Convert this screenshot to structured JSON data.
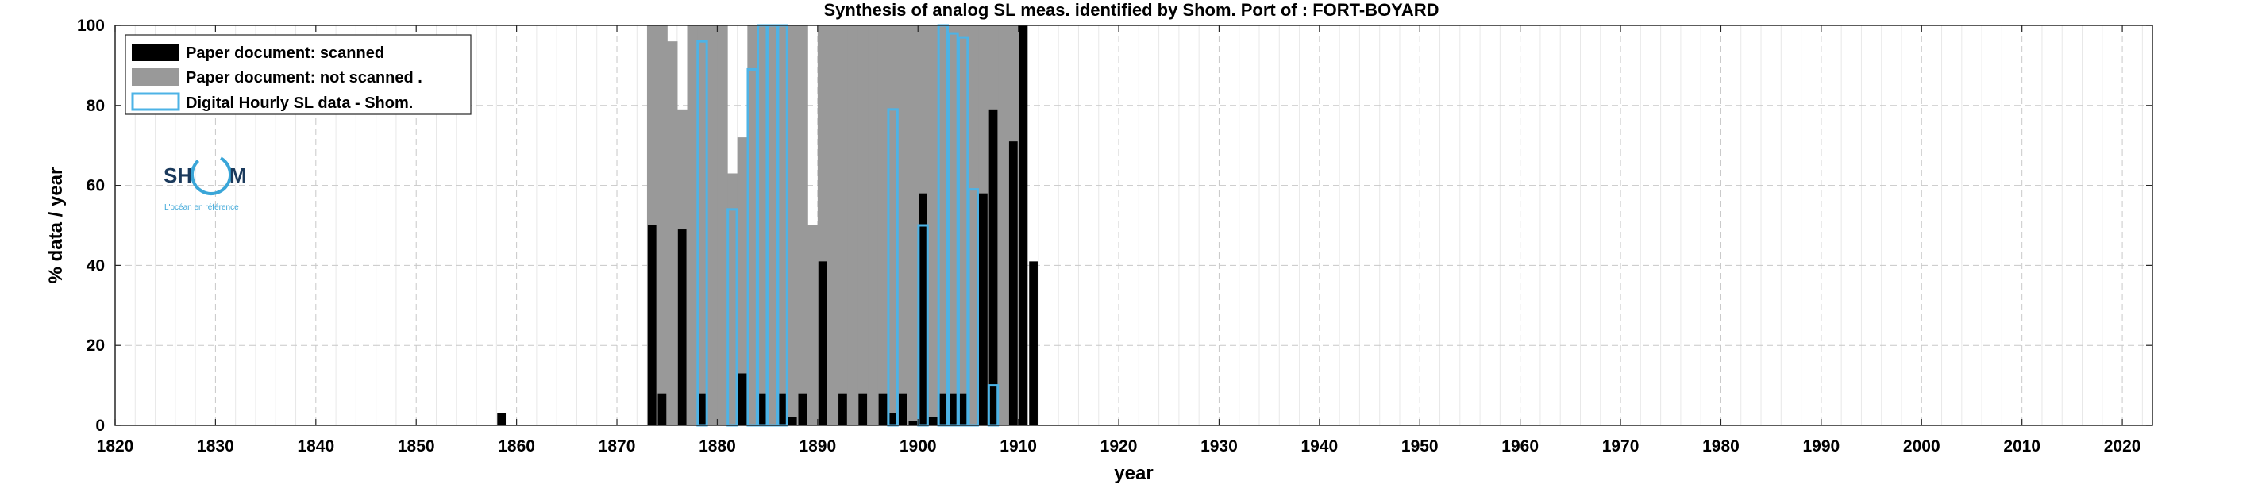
{
  "chart_data": {
    "type": "bar",
    "title": "Synthesis of analog SL meas. identified by Shom. Port of : FORT-BOYARD",
    "xlabel": "year",
    "ylabel": "% data / year",
    "xlim": [
      1820,
      2023
    ],
    "ylim": [
      0,
      100
    ],
    "xticks": [
      1820,
      1830,
      1840,
      1850,
      1860,
      1870,
      1880,
      1890,
      1900,
      1910,
      1920,
      1930,
      1940,
      1950,
      1960,
      1970,
      1980,
      1990,
      2000,
      2010,
      2020
    ],
    "yticks": [
      0,
      20,
      40,
      60,
      80,
      100
    ],
    "grid": true,
    "legend_position": "top-left",
    "legend": [
      {
        "label": "Paper document: scanned",
        "color": "#000000",
        "style": "filled"
      },
      {
        "label": "Paper document: not scanned   .",
        "color": "#999999",
        "style": "filled"
      },
      {
        "label": "Digital Hourly SL data - Shom.",
        "color": "#4db3e6",
        "style": "outline"
      }
    ],
    "series": [
      {
        "name": "Paper document: not scanned   .",
        "color": "#999999",
        "points": [
          [
            1873,
            100
          ],
          [
            1874,
            100
          ],
          [
            1875,
            96
          ],
          [
            1876,
            79
          ],
          [
            1877,
            100
          ],
          [
            1878,
            100
          ],
          [
            1879,
            100
          ],
          [
            1880,
            100
          ],
          [
            1881,
            63
          ],
          [
            1882,
            72
          ],
          [
            1883,
            100
          ],
          [
            1884,
            100
          ],
          [
            1885,
            100
          ],
          [
            1886,
            100
          ],
          [
            1887,
            100
          ],
          [
            1888,
            100
          ],
          [
            1889,
            50
          ],
          [
            1890,
            100
          ],
          [
            1891,
            100
          ],
          [
            1892,
            100
          ],
          [
            1893,
            100
          ],
          [
            1894,
            100
          ],
          [
            1895,
            100
          ],
          [
            1896,
            100
          ],
          [
            1897,
            100
          ],
          [
            1898,
            100
          ],
          [
            1899,
            100
          ],
          [
            1900,
            100
          ],
          [
            1901,
            100
          ],
          [
            1902,
            100
          ],
          [
            1903,
            100
          ],
          [
            1904,
            100
          ],
          [
            1905,
            100
          ],
          [
            1906,
            100
          ],
          [
            1907,
            100
          ],
          [
            1908,
            100
          ],
          [
            1909,
            100
          ]
        ]
      },
      {
        "name": "Paper document: scanned",
        "color": "#000000",
        "points": [
          [
            1858,
            3
          ],
          [
            1873,
            50
          ],
          [
            1874,
            8
          ],
          [
            1876,
            49
          ],
          [
            1878,
            8
          ],
          [
            1882,
            13
          ],
          [
            1884,
            8
          ],
          [
            1886,
            8
          ],
          [
            1887,
            2
          ],
          [
            1888,
            8
          ],
          [
            1890,
            41
          ],
          [
            1892,
            8
          ],
          [
            1894,
            8
          ],
          [
            1896,
            8
          ],
          [
            1897,
            3
          ],
          [
            1898,
            8
          ],
          [
            1899,
            1
          ],
          [
            1900,
            58
          ],
          [
            1901,
            2
          ],
          [
            1902,
            8
          ],
          [
            1903,
            8
          ],
          [
            1904,
            8
          ],
          [
            1906,
            58
          ],
          [
            1907,
            79
          ],
          [
            1909,
            71
          ],
          [
            1910,
            100
          ],
          [
            1911,
            41
          ]
        ]
      },
      {
        "name": "Digital Hourly SL data - Shom.",
        "color": "#4db3e6",
        "points": [
          [
            1878,
            96
          ],
          [
            1881,
            54
          ],
          [
            1883,
            89
          ],
          [
            1884,
            100
          ],
          [
            1885,
            100
          ],
          [
            1886,
            100
          ],
          [
            1897,
            79
          ],
          [
            1900,
            50
          ],
          [
            1902,
            100
          ],
          [
            1903,
            98
          ],
          [
            1904,
            97
          ],
          [
            1905,
            59
          ],
          [
            1907,
            10
          ]
        ]
      }
    ]
  },
  "logo": {
    "text_left": "SH",
    "text_right": "M",
    "tagline": "L'océan en référence"
  }
}
